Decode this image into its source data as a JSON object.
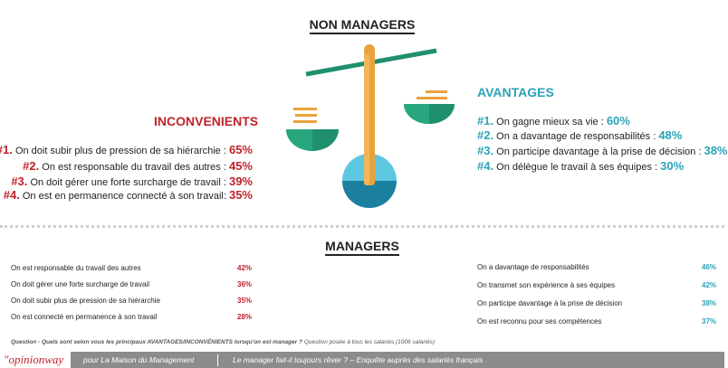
{
  "non_managers": {
    "title": "NON MANAGERS",
    "cons": {
      "heading": "INCONVENIENTS",
      "items": [
        {
          "rank": "#1.",
          "text": "On doit subir plus de pression de sa hiérarchie :",
          "pct": "65%"
        },
        {
          "rank": "#2.",
          "text": "On est responsable du travail des autres :",
          "pct": "45%"
        },
        {
          "rank": "#3.",
          "text": "On doit gérer une forte surcharge de travail :",
          "pct": "39%"
        },
        {
          "rank": "#4.",
          "text": "On est en permanence connecté à son travail:",
          "pct": "35%"
        }
      ]
    },
    "pros": {
      "heading": "AVANTAGES",
      "items": [
        {
          "rank": "#1.",
          "text": "On gagne mieux sa vie :",
          "pct": "60%"
        },
        {
          "rank": "#2.",
          "text": "On a davantage de responsabilités :",
          "pct": "48%"
        },
        {
          "rank": "#3.",
          "text": "On participe davantage à la prise de décision :",
          "pct": "38%"
        },
        {
          "rank": "#4.",
          "text": "On délègue le travail à ses équipes :",
          "pct": "30%"
        }
      ]
    }
  },
  "managers": {
    "title": "MANAGERS",
    "cons": [
      {
        "text": "On est responsable du travail des autres",
        "pct": "42%"
      },
      {
        "text": "On doit gérer une forte surcharge de travail",
        "pct": "36%"
      },
      {
        "text": "On doit subir plus de pression de sa hiérarchie",
        "pct": "35%"
      },
      {
        "text": "On est connecté en permanence à son travail",
        "pct": "28%"
      }
    ],
    "pros": [
      {
        "text": "On a davantage de responsabilités",
        "pct": "46%"
      },
      {
        "text": "On transmet son expérience à ses équipes",
        "pct": "42%"
      },
      {
        "text": "On participe davantage à la prise de décision",
        "pct": "38%"
      },
      {
        "text": "On est reconnu pour ses compétences",
        "pct": "37%"
      }
    ]
  },
  "question": {
    "label": "Question - ",
    "text": "Quels sont selon vous les principaux AVANTAGES/INCONVÉNIENTS  lorsqu'on est manager ?",
    "note": " Question posée à tous les salariés (1006 salariés)"
  },
  "footer": {
    "brand_prefix": "\"",
    "brand_main": "opinion",
    "brand_suffix": "way",
    "client": "pour  La Maison du Management",
    "study": "Le manager fait-il toujours rêver ? – Enquête auprès des salariés français"
  },
  "colors": {
    "red": "#c0222b",
    "teal": "#2aa3b8",
    "green": "#1f8f6e",
    "orange": "#e9a13b",
    "gray": "#8c8c8c"
  }
}
